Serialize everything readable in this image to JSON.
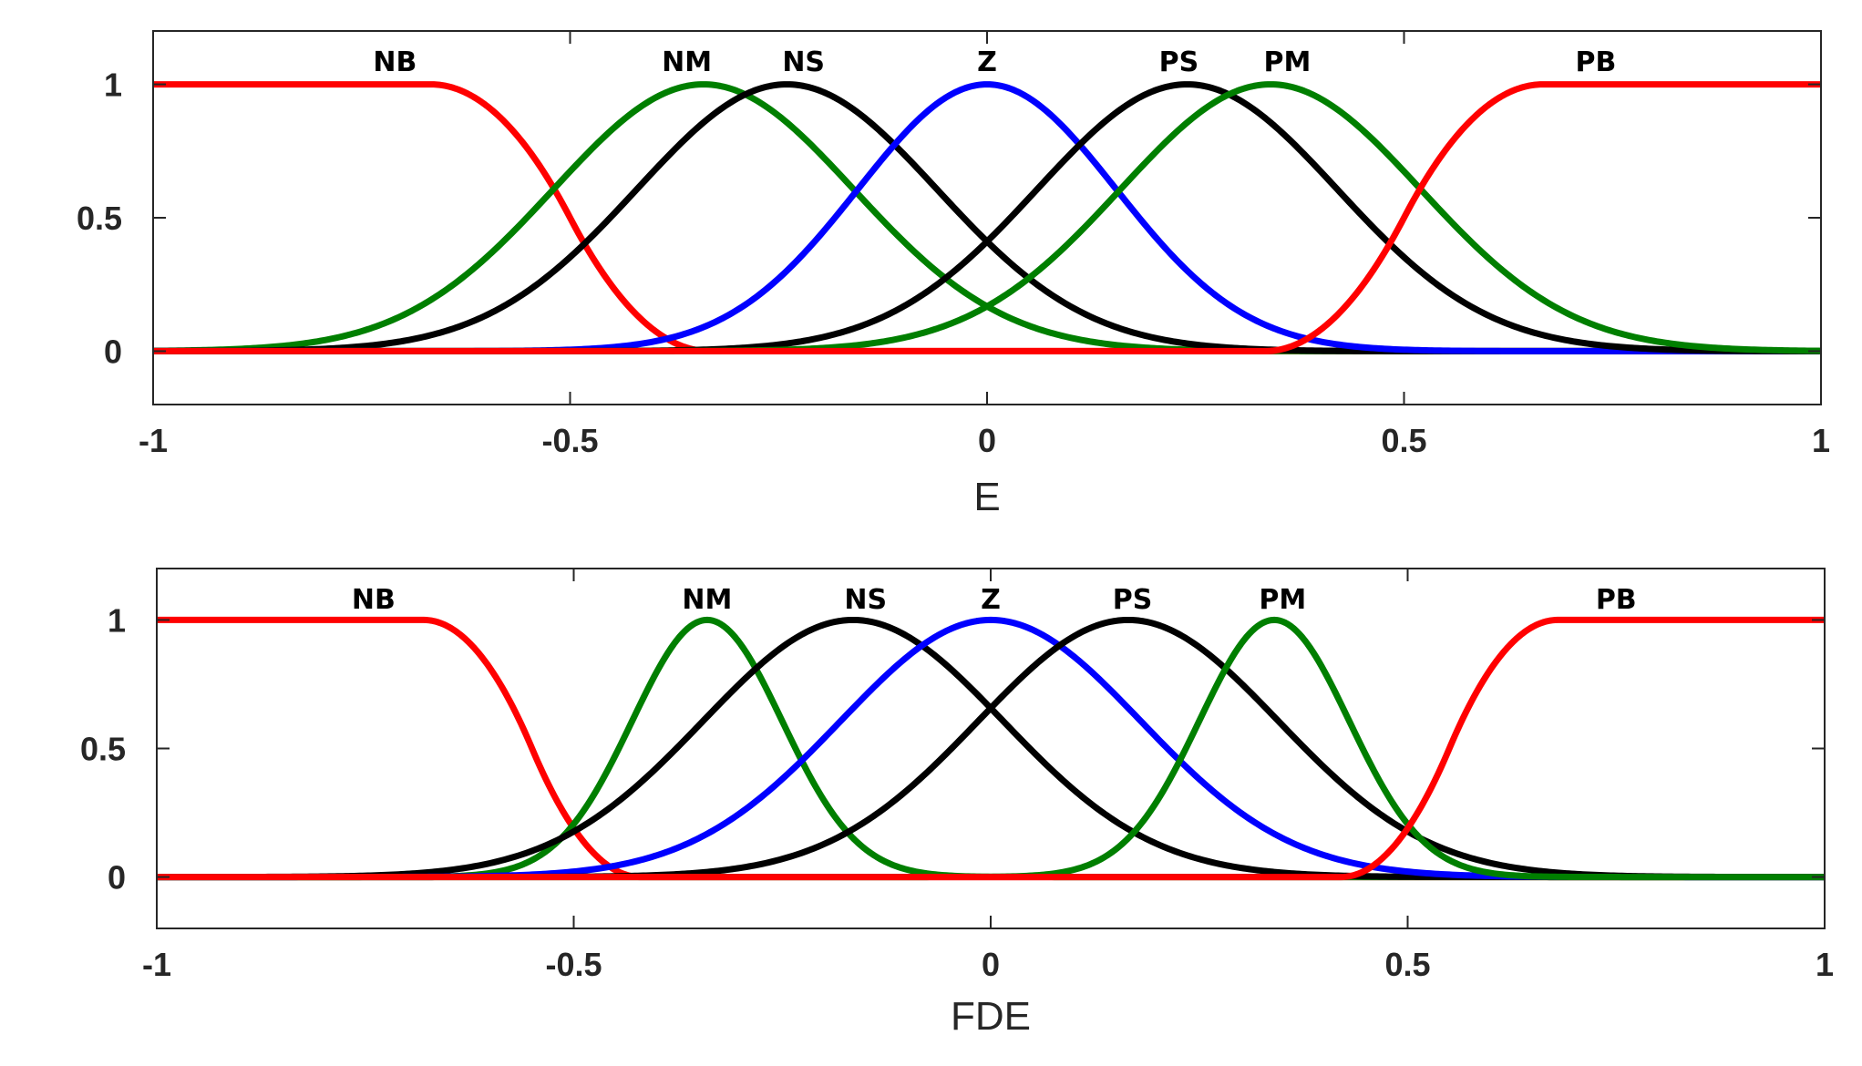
{
  "chart_data": [
    {
      "type": "line",
      "xlabel": "E",
      "ylabel": "",
      "xlim": [
        -1,
        1
      ],
      "ylim": [
        -0.2,
        1.2
      ],
      "xticks": [
        -1,
        -0.5,
        0,
        0.5,
        1
      ],
      "xtick_labels": [
        "-1",
        "-0.5",
        "0",
        "0.5",
        "1"
      ],
      "yticks": [
        0,
        0.5,
        1
      ],
      "ytick_labels": [
        "0",
        "0.5",
        "1"
      ],
      "grid": false,
      "legend": "none",
      "series": [
        {
          "name": "NB",
          "shape": "z-shaped",
          "params": [
            -0.667,
            -0.333
          ],
          "color": "#ff0000",
          "label_x": -0.71
        },
        {
          "name": "NM",
          "shape": "gaussian",
          "params": [
            -0.34,
            0.18
          ],
          "color": "#007f00",
          "label_x": -0.36
        },
        {
          "name": "NS",
          "shape": "gaussian",
          "params": [
            -0.24,
            0.18
          ],
          "color": "#000000",
          "label_x": -0.22
        },
        {
          "name": "Z",
          "shape": "gaussian",
          "params": [
            0.0,
            0.155
          ],
          "color": "#0000ff",
          "label_x": 0.0
        },
        {
          "name": "PS",
          "shape": "gaussian",
          "params": [
            0.24,
            0.18
          ],
          "color": "#000000",
          "label_x": 0.23
        },
        {
          "name": "PM",
          "shape": "gaussian",
          "params": [
            0.34,
            0.18
          ],
          "color": "#007f00",
          "label_x": 0.36
        },
        {
          "name": "PB",
          "shape": "s-shaped",
          "params": [
            0.333,
            0.667
          ],
          "color": "#ff0000",
          "label_x": 0.73
        }
      ]
    },
    {
      "type": "line",
      "xlabel": "FDE",
      "ylabel": "",
      "xlim": [
        -1,
        1
      ],
      "ylim": [
        -0.2,
        1.2
      ],
      "xticks": [
        -1,
        -0.5,
        0,
        0.5,
        1
      ],
      "xtick_labels": [
        "-1",
        "-0.5",
        "0",
        "0.5",
        "1"
      ],
      "yticks": [
        0,
        0.5,
        1
      ],
      "ytick_labels": [
        "0",
        "0.5",
        "1"
      ],
      "grid": false,
      "legend": "none",
      "series": [
        {
          "name": "NB",
          "shape": "z-shaped",
          "params": [
            -0.68,
            -0.42
          ],
          "color": "#ff0000",
          "label_x": -0.74
        },
        {
          "name": "NM",
          "shape": "gaussian",
          "params": [
            -0.34,
            0.09
          ],
          "color": "#007f00",
          "label_x": -0.34
        },
        {
          "name": "NS",
          "shape": "gaussian",
          "params": [
            -0.165,
            0.18
          ],
          "color": "#000000",
          "label_x": -0.15
        },
        {
          "name": "Z",
          "shape": "gaussian",
          "params": [
            0.0,
            0.18
          ],
          "color": "#0000ff",
          "label_x": 0.0
        },
        {
          "name": "PS",
          "shape": "gaussian",
          "params": [
            0.165,
            0.18
          ],
          "color": "#000000",
          "label_x": 0.17
        },
        {
          "name": "PM",
          "shape": "gaussian",
          "params": [
            0.34,
            0.09
          ],
          "color": "#007f00",
          "label_x": 0.35
        },
        {
          "name": "PB",
          "shape": "s-shaped",
          "params": [
            0.42,
            0.68
          ],
          "color": "#ff0000",
          "label_x": 0.75
        }
      ]
    }
  ]
}
